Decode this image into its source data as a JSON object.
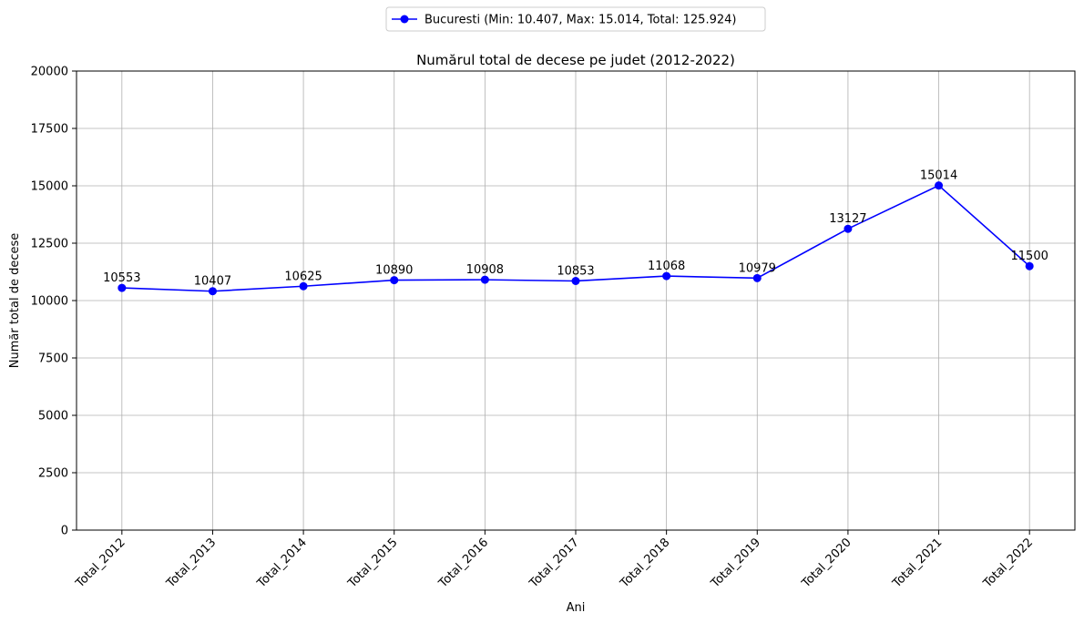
{
  "chart_data": {
    "type": "line",
    "title": "Numărul total de decese pe judet (2012-2022)",
    "xlabel": "Ani",
    "ylabel": "Număr total de decese",
    "categories": [
      "Total_2012",
      "Total_2013",
      "Total_2014",
      "Total_2015",
      "Total_2016",
      "Total_2017",
      "Total_2018",
      "Total_2019",
      "Total_2020",
      "Total_2021",
      "Total_2022"
    ],
    "series": [
      {
        "name": "Bucuresti (Min: 10.407, Max: 15.014, Total: 125.924)",
        "color": "#0000ff",
        "values": [
          10553,
          10407,
          10625,
          10890,
          10908,
          10853,
          11068,
          10979,
          13127,
          15014,
          11500
        ]
      }
    ],
    "ylim": [
      0,
      20000
    ],
    "yticks": [
      0,
      2500,
      5000,
      7500,
      10000,
      12500,
      15000,
      17500,
      20000
    ],
    "grid": true,
    "legend_position": "top-center"
  }
}
